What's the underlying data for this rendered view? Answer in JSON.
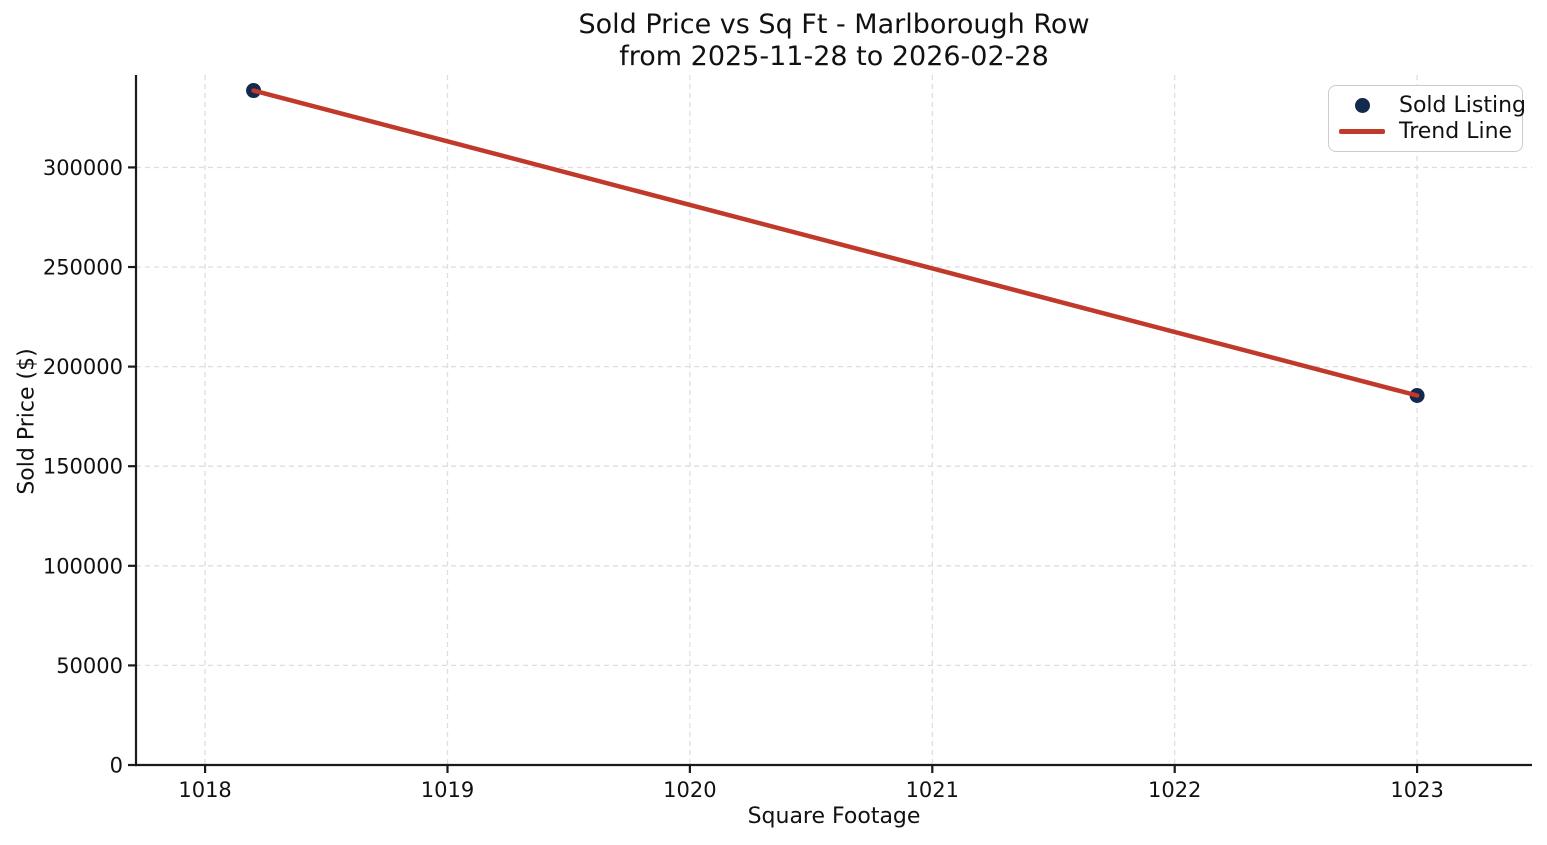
{
  "chart_data": {
    "type": "scatter",
    "title": "Sold Price vs Sq Ft - Marlborough Row",
    "subtitle": "from 2025-11-28 to 2026-02-28",
    "xlabel": "Square Footage",
    "ylabel": "Sold Price ($)",
    "xlim": [
      1017.715,
      1023.474
    ],
    "ylim": [
      0,
      346400
    ],
    "x_ticks": [
      1018,
      1019,
      1020,
      1021,
      1022,
      1023
    ],
    "y_ticks": [
      0,
      50000,
      100000,
      150000,
      200000,
      250000,
      300000
    ],
    "grid": true,
    "grid_style": "dashed",
    "legend_position": "upper-right",
    "series": [
      {
        "name": "Sold Listing",
        "type": "scatter",
        "marker": "circle",
        "color": "#132a4e",
        "points": [
          {
            "x": 1018.2,
            "y": 338600
          },
          {
            "x": 1023.0,
            "y": 185500
          }
        ]
      },
      {
        "name": "Trend Line",
        "type": "line",
        "color": "#c0392b",
        "points": [
          {
            "x": 1018.2,
            "y": 338600
          },
          {
            "x": 1023.0,
            "y": 185500
          }
        ]
      }
    ]
  },
  "legend": {
    "items": [
      {
        "label": "Sold Listing",
        "marker": "dot",
        "color": "#132a4e"
      },
      {
        "label": "Trend Line",
        "marker": "line",
        "color": "#c0392b"
      }
    ]
  },
  "colors": {
    "point": "#132a4e",
    "trend": "#c0392b",
    "grid": "#dedede",
    "axis": "#1a1a1a",
    "text": "#111111",
    "legend_border": "#cccccc",
    "background": "#ffffff"
  }
}
